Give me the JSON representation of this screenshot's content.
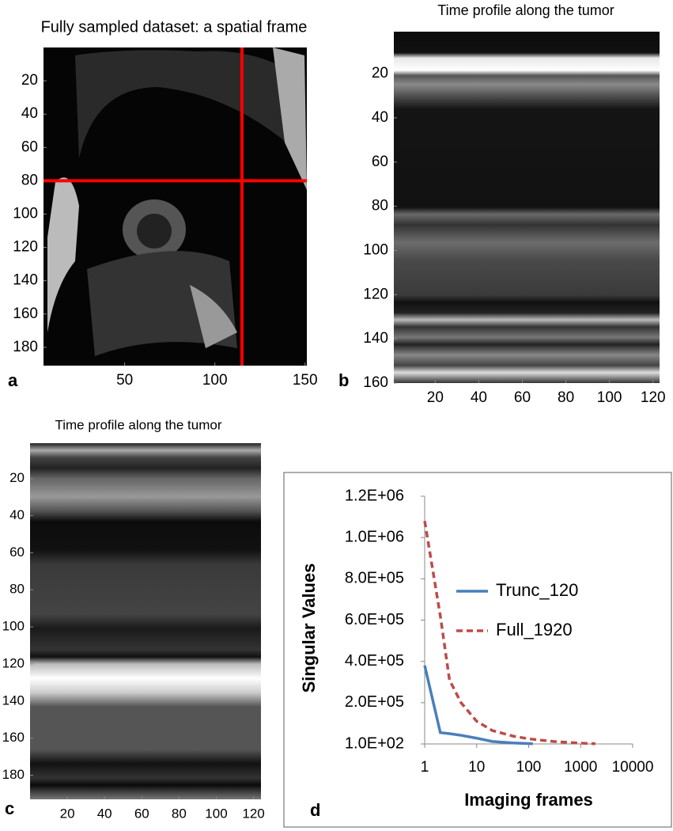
{
  "chart_data": [
    {
      "type": "image",
      "title": "Fully sampled dataset: a spatial frame",
      "panel_label": "a",
      "xlim": [
        5,
        151
      ],
      "ylim": [
        0,
        191
      ],
      "xticks": [
        50,
        100,
        150
      ],
      "yticks": [
        20,
        40,
        60,
        80,
        100,
        120,
        140,
        160,
        180
      ],
      "crosshair_x": 115,
      "crosshair_y": 80,
      "crosshair_color": "#ff0000"
    },
    {
      "type": "image",
      "title": "Time profile along the tumor",
      "panel_label": "b",
      "xlim": [
        1,
        123
      ],
      "ylim": [
        1,
        160
      ],
      "xticks": [
        20,
        40,
        60,
        80,
        100,
        120
      ],
      "yticks": [
        20,
        40,
        60,
        80,
        100,
        120,
        140,
        160
      ]
    },
    {
      "type": "image",
      "title": "Time profile along the tumor",
      "panel_label": "c",
      "xlim": [
        0,
        124
      ],
      "ylim": [
        1,
        193
      ],
      "xticks": [
        20,
        40,
        60,
        80,
        100,
        120
      ],
      "yticks": [
        20,
        40,
        60,
        80,
        100,
        120,
        140,
        160,
        180
      ]
    },
    {
      "type": "line",
      "panel_label": "d",
      "xlabel": "Imaging frames",
      "ylabel": "Singular Values",
      "xscale": "log",
      "xlim": [
        1,
        10000
      ],
      "xticks": [
        1,
        10,
        100,
        1000,
        10000
      ],
      "ylim": [
        100,
        1200000
      ],
      "yticks": [
        {
          "value": 100,
          "label": "1.0E+02"
        },
        {
          "value": 200000,
          "label": "2.0E+05"
        },
        {
          "value": 400000,
          "label": "4.0E+05"
        },
        {
          "value": 600000,
          "label": "6.0E+05"
        },
        {
          "value": 800000,
          "label": "8.0E+05"
        },
        {
          "value": 1000000,
          "label": "1.0E+06"
        },
        {
          "value": 1200000,
          "label": "1.2E+06"
        }
      ],
      "series": [
        {
          "name": "Trunc_120",
          "color": "#4a7ebb",
          "dashed": false,
          "x": [
            1,
            2,
            3,
            5,
            10,
            20,
            50,
            120
          ],
          "values": [
            380000,
            55000,
            50000,
            42000,
            28000,
            12000,
            5000,
            1000
          ]
        },
        {
          "name": "Full_1920",
          "color": "#be4b48",
          "dashed": true,
          "x": [
            1,
            2,
            3,
            5,
            10,
            20,
            50,
            100,
            300,
            1000,
            1920
          ],
          "values": [
            1080000,
            620000,
            310000,
            200000,
            110000,
            65000,
            38000,
            25000,
            12000,
            4000,
            1000
          ]
        }
      ]
    }
  ]
}
